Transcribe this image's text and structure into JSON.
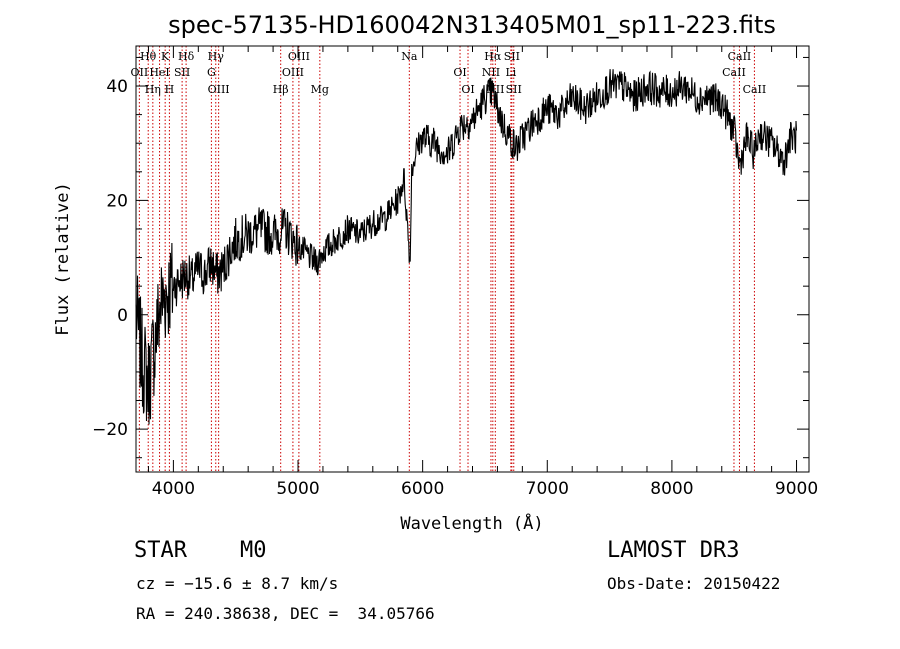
{
  "chart_data": {
    "type": "line",
    "title": "spec-57135-HD160042N313405M01_sp11-223.fits",
    "xlabel": "Wavelength (Å)",
    "ylabel": "Flux (relative)",
    "xlim": [
      3700,
      9100
    ],
    "ylim": [
      -27.5,
      47
    ],
    "x_ticks": [
      4000,
      5000,
      6000,
      7000,
      8000,
      9000
    ],
    "y_ticks": [
      -20,
      0,
      20,
      40
    ],
    "grid": false,
    "line_color": "#000000",
    "marker_color": "#cc0000",
    "series": [
      {
        "x": [
          3700,
          3750,
          3800,
          3850,
          3900,
          3950,
          4000,
          4050,
          4100,
          4150,
          4200,
          4250,
          4300,
          4350,
          4400,
          4450,
          4500,
          4600,
          4700,
          4800,
          4900,
          5000,
          5100,
          5150,
          5200,
          5300,
          5400,
          5500,
          5600,
          5700,
          5800,
          5850,
          5900,
          5910,
          5950,
          6000,
          6100,
          6200,
          6300,
          6400,
          6500,
          6560,
          6600,
          6650,
          6700,
          6750,
          6800,
          6900,
          7000,
          7100,
          7200,
          7300,
          7400,
          7500,
          7600,
          7700,
          7800,
          7900,
          8000,
          8100,
          8200,
          8300,
          8400,
          8500,
          8542,
          8600,
          8662,
          8700,
          8800,
          8900,
          8950,
          9000
        ],
        "y": [
          0,
          -8,
          -12,
          -5,
          2,
          4,
          5,
          6,
          7,
          6,
          8,
          7,
          9,
          7,
          8,
          11,
          13,
          14,
          15,
          14,
          15,
          12,
          10,
          9,
          11,
          13,
          15,
          14,
          16,
          17,
          20,
          24,
          9,
          25,
          29,
          31,
          30,
          28,
          33,
          34,
          38,
          39,
          36,
          33,
          31,
          29,
          31,
          34,
          36,
          35,
          38,
          36,
          38,
          40,
          40,
          38,
          40,
          39,
          39,
          40,
          38,
          38,
          37,
          32,
          26,
          31,
          28,
          32,
          30,
          27,
          31,
          31
        ]
      }
    ],
    "lines": [
      {
        "name": "Hθ",
        "x": 3798
      },
      {
        "name": "OII",
        "x": 3727
      },
      {
        "name": "Hη",
        "x": 3835
      },
      {
        "name": "K",
        "x": 3934
      },
      {
        "name": "HeI",
        "x": 3889
      },
      {
        "name": "H",
        "x": 3968
      },
      {
        "name": "Hδ",
        "x": 4102
      },
      {
        "name": "SII",
        "x": 4070
      },
      {
        "name": "OIII",
        "x": 4363
      },
      {
        "name": "Hγ",
        "x": 4340
      },
      {
        "name": "G",
        "x": 4305
      },
      {
        "name": "Hβ",
        "x": 4861
      },
      {
        "name": "OIII",
        "x": 5007
      },
      {
        "name": "OIII",
        "x": 4959
      },
      {
        "name": "Mg",
        "x": 5175
      },
      {
        "name": "Na",
        "x": 5893
      },
      {
        "name": "OI",
        "x": 6300
      },
      {
        "name": "OI",
        "x": 6364
      },
      {
        "name": "Hα",
        "x": 6563
      },
      {
        "name": "NII",
        "x": 6548
      },
      {
        "name": "NII",
        "x": 6583
      },
      {
        "name": "SII",
        "x": 6716
      },
      {
        "name": "Li",
        "x": 6708
      },
      {
        "name": "SII",
        "x": 6731
      },
      {
        "name": "CaII",
        "x": 8542
      },
      {
        "name": "CaII",
        "x": 8498
      },
      {
        "name": "CaII",
        "x": 8662
      }
    ]
  },
  "info": {
    "object_class": "STAR    M0",
    "survey": "LAMOST DR3",
    "cz": "cz = −15.6 ± 8.7 km/s",
    "obs_date": "Obs-Date: 20150422",
    "coords": "RA = 240.38638, DEC =  34.05766"
  }
}
